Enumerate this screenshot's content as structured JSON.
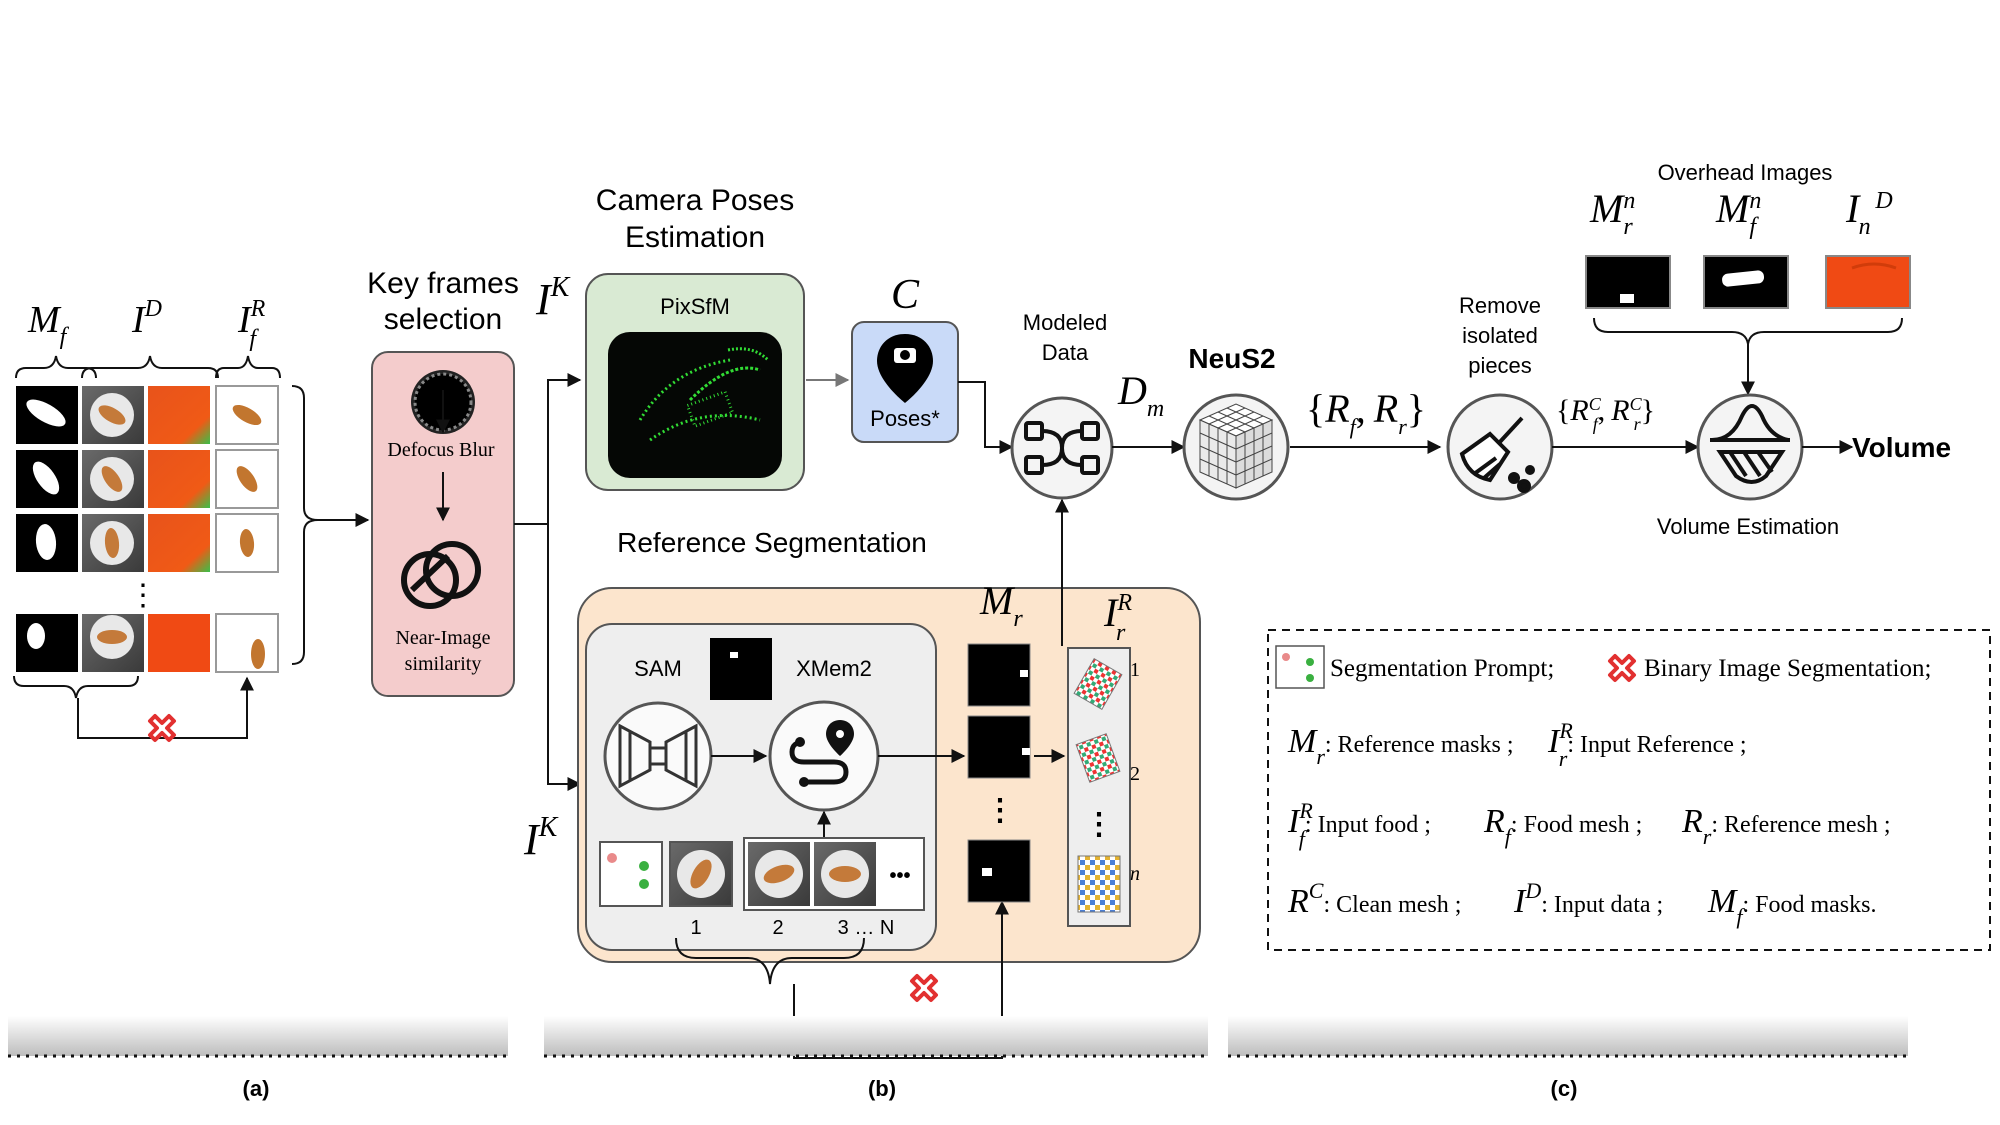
{
  "panel_a": {
    "label": "(a)",
    "header_mf": {
      "base": "M",
      "sub": "f"
    },
    "header_id": {
      "base": "I",
      "sup": "D"
    },
    "header_ifr": {
      "base": "I",
      "sup": "R",
      "sub": "f"
    },
    "ellipsis": "⋮"
  },
  "keyframes": {
    "title_line1": "Key frames",
    "title_line2": "selection",
    "defocus": "Defocus Blur",
    "near_line1": "Near-Image",
    "near_line2": "similarity"
  },
  "ik_top": {
    "base": "I",
    "sup": "K"
  },
  "ik_bottom": {
    "base": "I",
    "sup": "K"
  },
  "camera": {
    "title_line1": "Camera Poses",
    "title_line2": "Estimation",
    "pixsfm": "PixSfM",
    "c_label": "C",
    "poses": "Poses*"
  },
  "modeled": {
    "line1": "Modeled",
    "line2": "Data",
    "dm": {
      "base": "D",
      "sub": "m"
    }
  },
  "neus2": "NeuS2",
  "rfr": {
    "open": "{",
    "r1": "R",
    "s1": "f",
    "comma": ",",
    "r2": "R",
    "s2": "r",
    "close": "}"
  },
  "remove": {
    "line1": "Remove",
    "line2": "isolated",
    "line3": "pieces"
  },
  "rc": {
    "open": "{",
    "r1": "R",
    "p1": "C",
    "s1": "f",
    "comma": ",",
    "r2": "R",
    "p2": "C",
    "s2": "r",
    "close": "}"
  },
  "overhead": {
    "title": "Overhead Images",
    "m_rn": {
      "base": "M",
      "sup": "n",
      "sub": "r"
    },
    "m_fn": {
      "base": "M",
      "sup": "n",
      "sub": "f"
    },
    "i_nd": {
      "base": "I",
      "sup": "D",
      "sub": "n"
    }
  },
  "volume": "Volume",
  "volume_estimation": "Volume Estimation",
  "reference": {
    "title": "Reference Segmentation",
    "sam": "SAM",
    "xmem2": "XMem2",
    "mr": {
      "base": "M",
      "sub": "r"
    },
    "irr": {
      "base": "I",
      "sup": "R",
      "sub": "r"
    },
    "frames": [
      "1",
      "2",
      "3 … N"
    ],
    "ref_numbers": [
      "1",
      "2",
      "n"
    ],
    "dots": "⋮",
    "ellipsis": "•••"
  },
  "panel_b_label": "(b)",
  "panel_c_label": "(c)",
  "legend": {
    "seg_prompt": "Segmentation Prompt;",
    "binary_seg": "Binary Image Segmentation;",
    "mr_text": ": Reference masks ;",
    "irr_text": ": Input Reference ;",
    "ifr_text": ": Input food ;",
    "rf_text": ": Food mesh ;",
    "rr_text": ": Reference mesh ;",
    "rc_text": ": Clean mesh ;",
    "id_text": ": Input data ;",
    "mf_text": ": Food masks.",
    "sym_M": "M",
    "sym_I": "I",
    "sym_R": "R",
    "sub_r": "r",
    "sub_f": "f",
    "sup_R": "R",
    "sup_C": "C",
    "sup_D": "D"
  },
  "colors": {
    "pink": "#f4cccc",
    "green_box": "#d9ead3",
    "blue_box": "#c9daf8",
    "orange_panel": "#fce5cd",
    "gray_box": "#eeeeee",
    "point_green": "#36f23a",
    "red_x": "#e23030",
    "depth_red": "#f04a14"
  }
}
